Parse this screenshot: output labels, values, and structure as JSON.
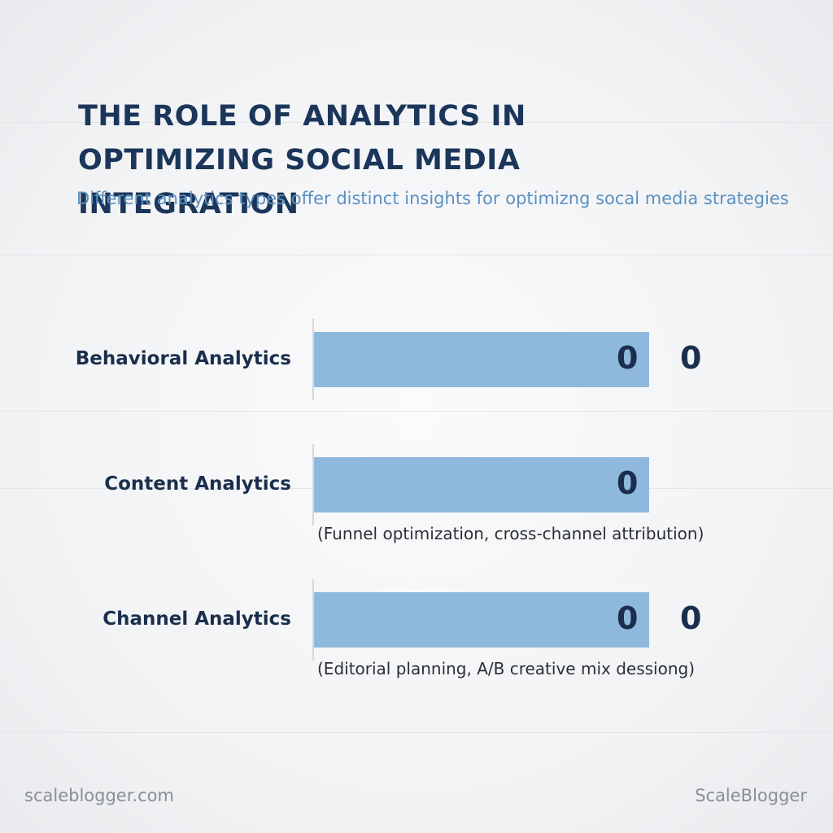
{
  "header": {
    "title": "THE ROLE OF ANALYTICS IN OPTIMIZING SOCIAL MEDIA INTEGRATION",
    "subtitle": "Different analytics types offer distinct insights for optimizng socal media strategies"
  },
  "rows": [
    {
      "label": "Behavioral Analytics",
      "values": [
        0,
        0
      ]
    },
    {
      "label": "Content Analytics",
      "values": [
        0
      ],
      "note": "(Funnel optimization, cross-channel attribution)"
    },
    {
      "label": "Channel Analytics",
      "values": [
        0,
        0
      ],
      "note": "(Editorial planning, A/B creative mix dessiong)"
    }
  ],
  "footer": {
    "left": "scaleblogger.com",
    "right": "ScaleBlogger"
  }
}
